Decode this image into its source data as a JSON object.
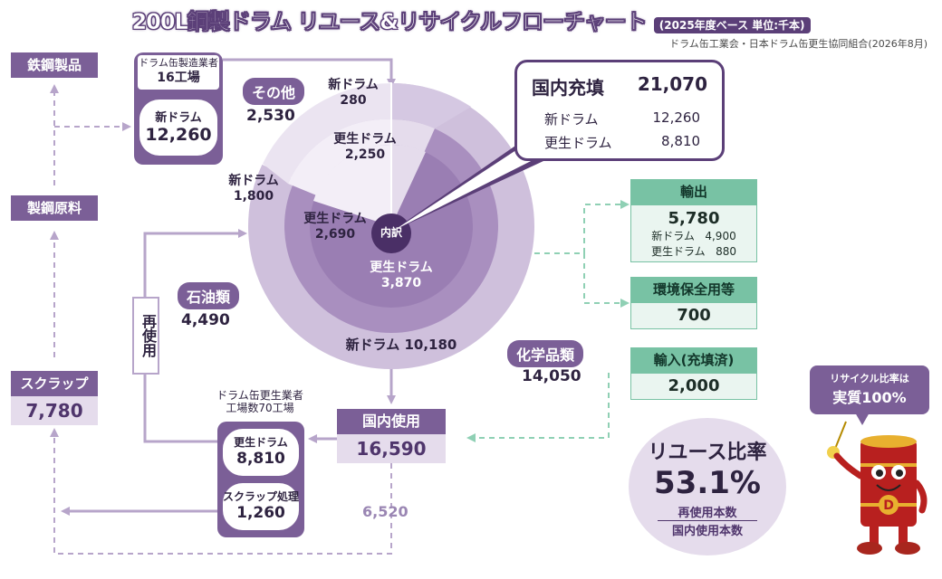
{
  "title": "200L鋼製ドラム リユース&リサイクルフローチャート",
  "unit": "(2025年度ベース 単位:千本)",
  "source": "ドラム缶工業会・日本ドラム缶更生協同組合(2026年8月)",
  "left": {
    "steel_products": "鉄鋼製品",
    "steel_raw": "製鋼原料",
    "scrap_label": "スクラップ",
    "scrap_value": "7,780",
    "reuse_label": "再使用"
  },
  "manufacturer": {
    "label": "ドラム缶製造業者",
    "factories": "16工場",
    "item": "新ドラム",
    "value": "12,260"
  },
  "pie": {
    "center_label": "内訳",
    "other": {
      "name": "その他",
      "value": "2,530",
      "new_label": "新ドラム",
      "new_value": "280",
      "re_label": "更生ドラム",
      "re_value": "2,250"
    },
    "oil": {
      "name": "石油類",
      "value": "4,490",
      "new_label": "新ドラム",
      "new_value": "1,800",
      "re_label": "更生ドラム",
      "re_value": "2,690"
    },
    "chem": {
      "name": "化学品類",
      "value": "14,050",
      "new_label": "新ドラム",
      "new_value": "10,180",
      "re_label": "更生ドラム",
      "re_value": "3,870"
    }
  },
  "domestic_fill": {
    "label": "国内充填",
    "value": "21,070",
    "new_label": "新ドラム",
    "new_value": "12,260",
    "re_label": "更生ドラム",
    "re_value": "8,810"
  },
  "export": {
    "label": "輸出",
    "value": "5,780",
    "new_label": "新ドラム",
    "new_value": "4,900",
    "re_label": "更生ドラム",
    "re_value": "880"
  },
  "env": {
    "label": "環境保全用等",
    "value": "700"
  },
  "import": {
    "label": "輸入(充填済)",
    "value": "2,000"
  },
  "domestic_use": {
    "label": "国内使用",
    "value": "16,590"
  },
  "reconditioner": {
    "label": "ドラム缶更生業者",
    "factories": "工場数70工場",
    "item1": "更生ドラム",
    "value1": "8,810",
    "item2": "スクラップ処理",
    "value2": "1,260"
  },
  "scrap_flow_value": "6,520",
  "reuse_ratio": {
    "label": "リユース比率",
    "value": "53.1%",
    "numerator": "再使用本数",
    "denominator": "国内使用本数"
  },
  "mascot": {
    "bubble_line1": "リサイクル比率は",
    "bubble_line2": "実質100%",
    "badge": "D"
  },
  "colors": {
    "purple": "#7b5f97",
    "light_purple": "#e5dcec",
    "green": "#78c2a4"
  }
}
